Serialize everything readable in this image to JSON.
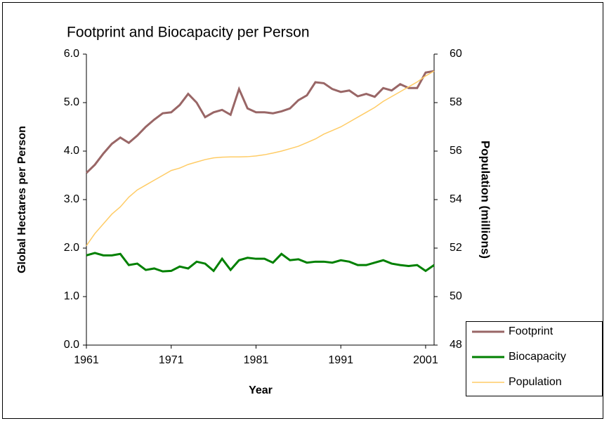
{
  "chart_data": {
    "type": "line",
    "title": "Footprint and Biocapacity per Person",
    "x_label": "Year",
    "y_label": "Global Hectares per Person",
    "y2_label": "Population (millions)",
    "x": [
      1961,
      1962,
      1963,
      1964,
      1965,
      1966,
      1967,
      1968,
      1969,
      1970,
      1971,
      1972,
      1973,
      1974,
      1975,
      1976,
      1977,
      1978,
      1979,
      1980,
      1981,
      1982,
      1983,
      1984,
      1985,
      1986,
      1987,
      1988,
      1989,
      1990,
      1991,
      1992,
      1993,
      1994,
      1995,
      1996,
      1997,
      1998,
      1999,
      2000,
      2001,
      2002
    ],
    "xlim": [
      1961,
      2002
    ],
    "xticks": [
      1961,
      1971,
      1981,
      1991,
      2001
    ],
    "ylim": [
      0,
      6
    ],
    "yticks": [
      {
        "value": 0,
        "label": "0.0"
      },
      {
        "value": 1,
        "label": "1.0"
      },
      {
        "value": 2,
        "label": "2.0"
      },
      {
        "value": 3,
        "label": "3.0"
      },
      {
        "value": 4,
        "label": "4.0"
      },
      {
        "value": 5,
        "label": "5.0"
      },
      {
        "value": 6,
        "label": "6.0"
      }
    ],
    "y2lim": [
      48,
      60
    ],
    "y2ticks": [
      48,
      50,
      52,
      54,
      56,
      58,
      60
    ],
    "legend": "lower-right",
    "series": [
      {
        "name": "Footprint",
        "color": "#996666",
        "values": [
          3.55,
          3.72,
          3.95,
          4.15,
          4.28,
          4.17,
          4.32,
          4.5,
          4.65,
          4.78,
          4.8,
          4.95,
          5.18,
          5.0,
          4.7,
          4.8,
          4.85,
          4.75,
          5.28,
          4.88,
          4.8,
          4.8,
          4.78,
          4.82,
          4.88,
          5.05,
          5.15,
          5.42,
          5.4,
          5.28,
          5.22,
          5.25,
          5.13,
          5.18,
          5.12,
          5.3,
          5.25,
          5.38,
          5.3,
          5.3,
          5.62,
          5.65
        ]
      },
      {
        "name": "Biocapacity",
        "color": "#008000",
        "values": [
          1.85,
          1.9,
          1.85,
          1.85,
          1.88,
          1.65,
          1.68,
          1.55,
          1.58,
          1.52,
          1.53,
          1.62,
          1.58,
          1.72,
          1.68,
          1.53,
          1.78,
          1.55,
          1.75,
          1.8,
          1.78,
          1.78,
          1.7,
          1.88,
          1.75,
          1.77,
          1.7,
          1.72,
          1.72,
          1.7,
          1.75,
          1.72,
          1.65,
          1.65,
          1.7,
          1.75,
          1.68,
          1.65,
          1.63,
          1.65,
          1.53,
          1.65
        ]
      },
      {
        "name": "Population",
        "color": "#ffcc66",
        "axis": "y2",
        "values": [
          52.1,
          52.6,
          53.0,
          53.4,
          53.7,
          54.1,
          54.4,
          54.6,
          54.8,
          55.0,
          55.2,
          55.3,
          55.45,
          55.55,
          55.65,
          55.72,
          55.75,
          55.76,
          55.76,
          55.77,
          55.8,
          55.85,
          55.92,
          56.0,
          56.1,
          56.2,
          56.35,
          56.5,
          56.7,
          56.85,
          57.0,
          57.2,
          57.4,
          57.6,
          57.8,
          58.05,
          58.25,
          58.45,
          58.65,
          58.85,
          59.1,
          59.3
        ]
      }
    ]
  }
}
